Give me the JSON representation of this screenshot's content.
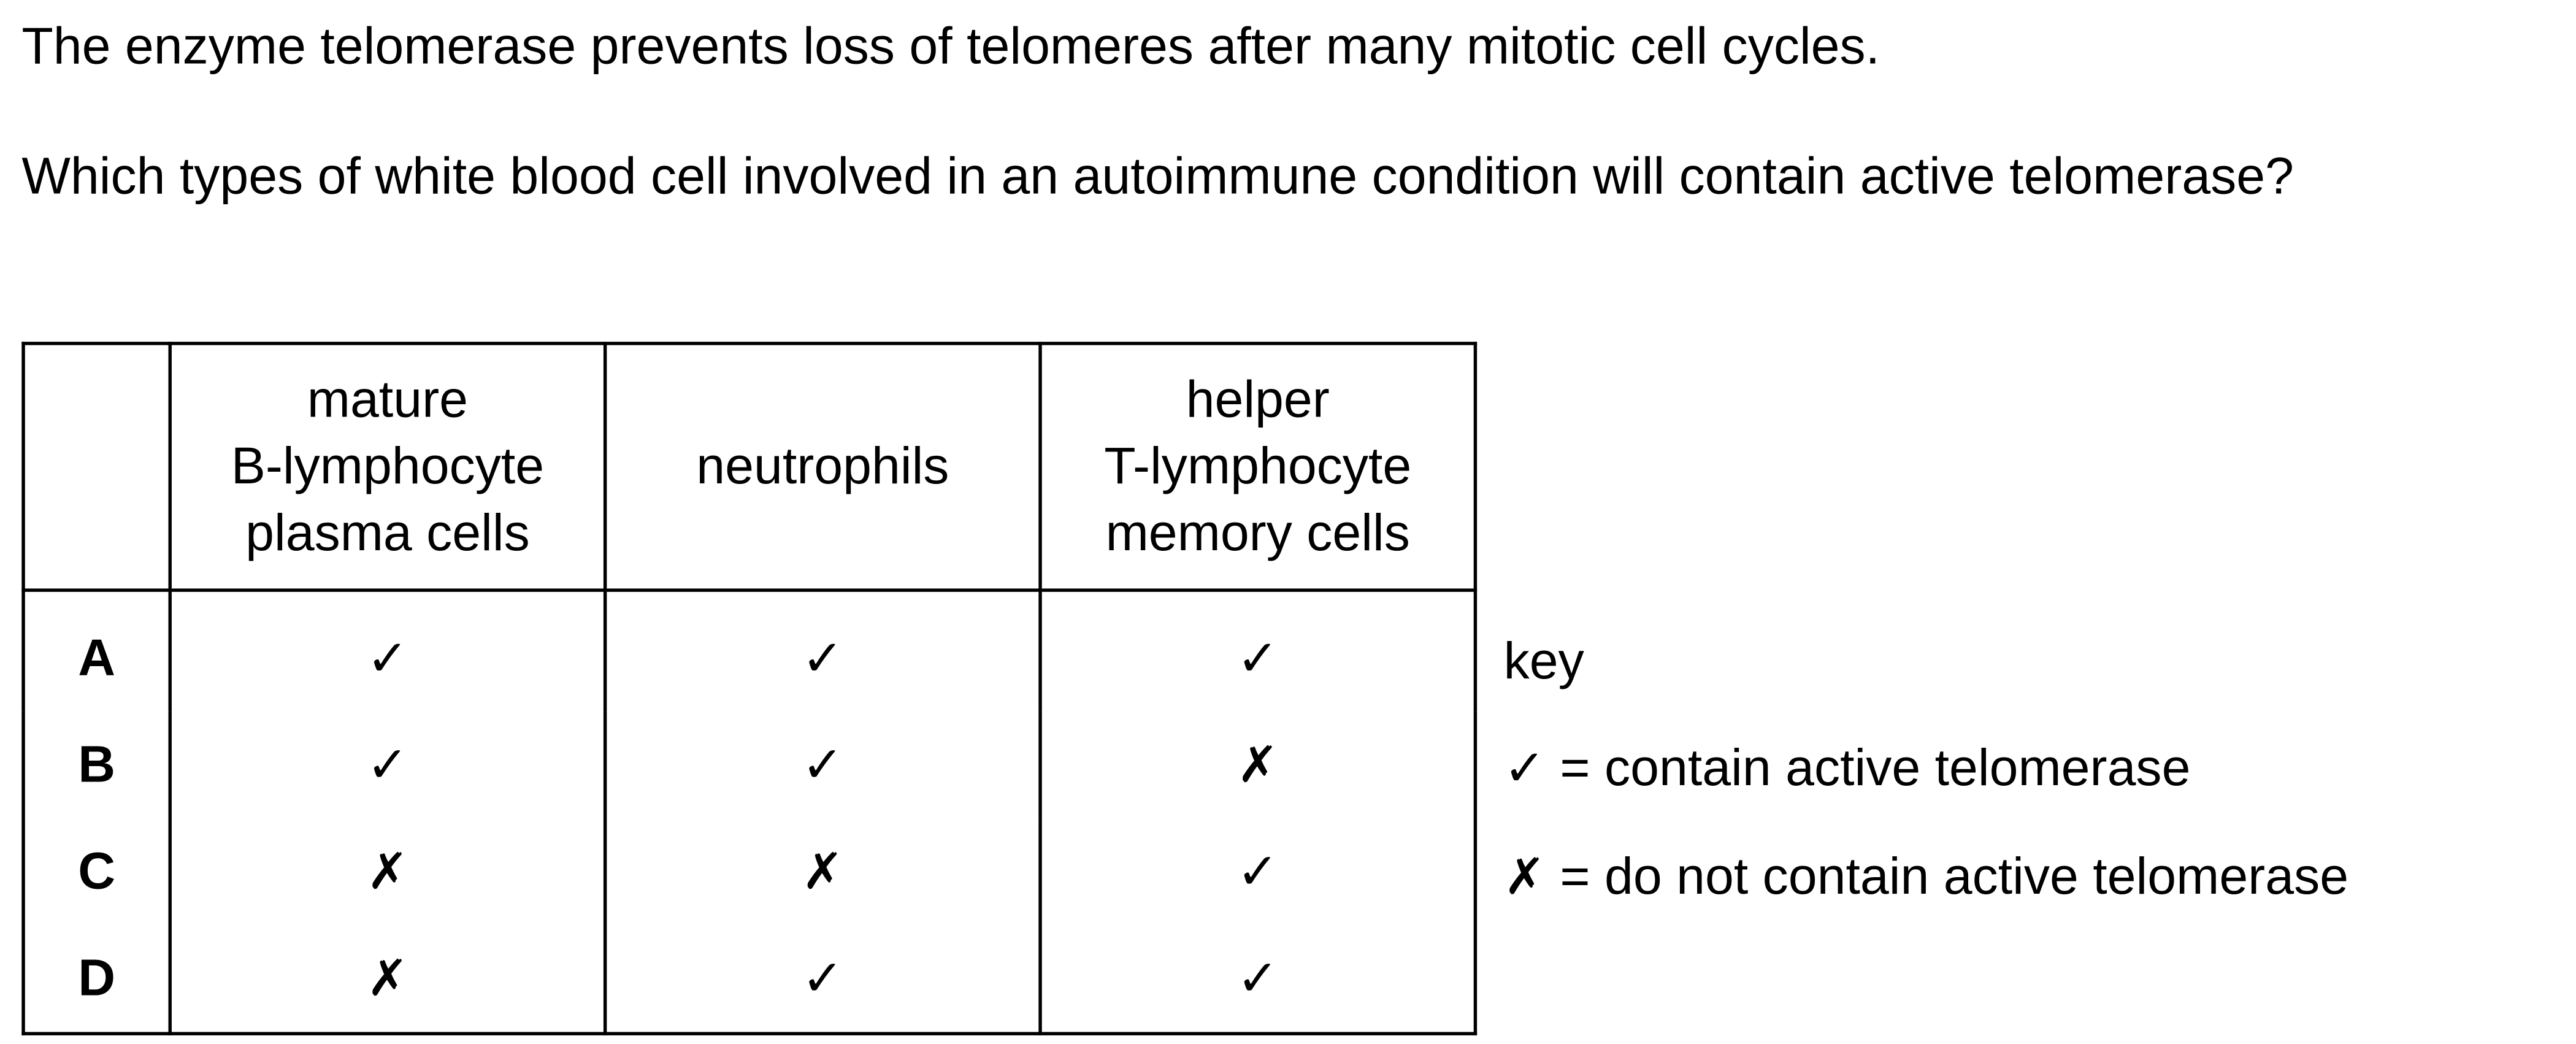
{
  "intro_text": "The enzyme telomerase prevents loss of telomeres after many mitotic cell cycles.",
  "question_text": "Which types of white blood cell involved in an autoimmune condition will contain active telomerase?",
  "table": {
    "headers": [
      [
        "mature",
        "B-lymphocyte",
        "plasma cells"
      ],
      [
        "neutrophils"
      ],
      [
        "helper",
        "T-lymphocyte",
        "memory cells"
      ]
    ],
    "rows": [
      {
        "letter": "A",
        "marks": [
          "✓",
          "✓",
          "✓"
        ]
      },
      {
        "letter": "B",
        "marks": [
          "✓",
          "✓",
          "✗"
        ]
      },
      {
        "letter": "C",
        "marks": [
          "✗",
          "✗",
          "✓"
        ]
      },
      {
        "letter": "D",
        "marks": [
          "✗",
          "✓",
          "✓"
        ]
      }
    ]
  },
  "key": {
    "title": "key",
    "tick_symbol": "✓",
    "tick_meaning": " = contain active telomerase",
    "cross_symbol": "✗",
    "cross_meaning": " = do not contain active telomerase"
  }
}
